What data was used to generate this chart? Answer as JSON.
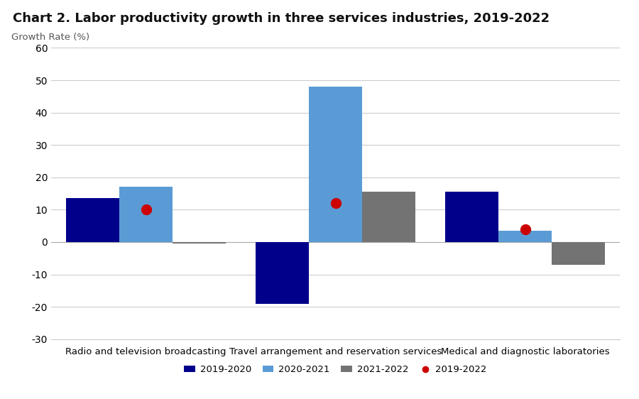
{
  "title": "Chart 2. Labor productivity growth in three services industries, 2019-2022",
  "ylabel": "Growth Rate (%)",
  "categories": [
    "Radio and television broadcasting",
    "Travel arrangement and reservation services",
    "Medical and diagnostic laboratories"
  ],
  "series": {
    "2019-2020": [
      13.5,
      -19.0,
      15.5
    ],
    "2020-2021": [
      17.0,
      48.0,
      3.5
    ],
    "2021-2022": [
      -0.5,
      15.5,
      -7.0
    ],
    "2019-2022": [
      10.0,
      12.0,
      4.0
    ]
  },
  "bar_colors": {
    "2019-2020": "#00008B",
    "2020-2021": "#5B9BD5",
    "2021-2022": "#737373"
  },
  "dot_color": "#CC0000",
  "ylim": [
    -30,
    60
  ],
  "yticks": [
    -30,
    -20,
    -10,
    0,
    10,
    20,
    30,
    40,
    50,
    60
  ],
  "background_color": "#FFFFFF",
  "grid_color": "#CCCCCC",
  "title_fontsize": 13,
  "label_fontsize": 9.5,
  "tick_fontsize": 10
}
